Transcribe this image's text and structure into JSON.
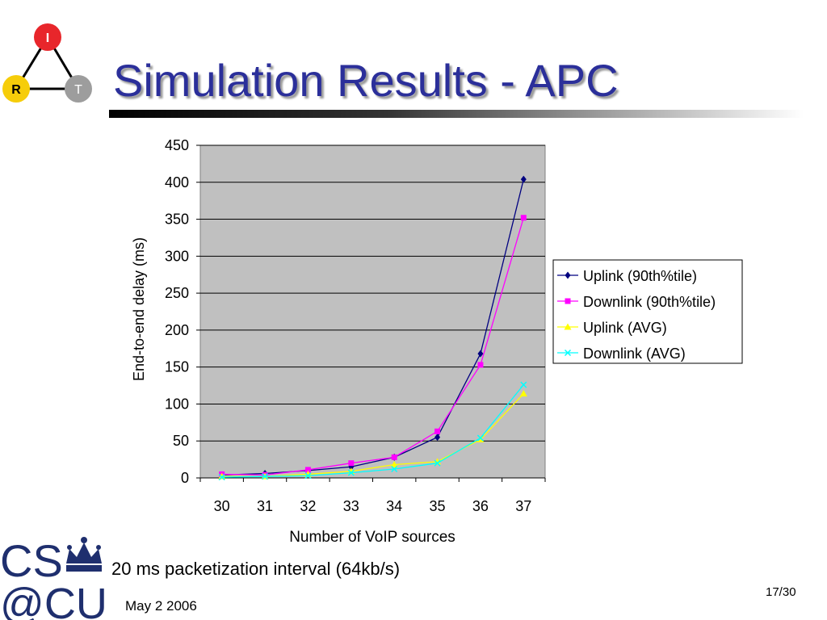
{
  "slide": {
    "title": "Simulation Results - APC",
    "caption": "20 ms packetization interval (64kb/s)",
    "date": "May 2 2006",
    "page": "17/30"
  },
  "logos": {
    "irt": {
      "letters": [
        "I",
        "R",
        "T"
      ],
      "colors": [
        "#e8262b",
        "#f6cd0a",
        "#9d9d9d"
      ]
    },
    "cu": {
      "line1": "CS",
      "line2": "@CU",
      "color": "#1f2f6e"
    }
  },
  "chart_data": {
    "type": "line",
    "title": "",
    "xlabel": "Number of VoIP sources",
    "ylabel": "End-to-end delay (ms)",
    "categories": [
      "30",
      "31",
      "32",
      "33",
      "34",
      "35",
      "36",
      "37"
    ],
    "ylim": [
      0,
      450
    ],
    "yticks": [
      "0",
      "50",
      "100",
      "150",
      "200",
      "250",
      "300",
      "350",
      "400",
      "450"
    ],
    "grid": true,
    "legend_position": "right",
    "plot_background": "#c0c0c0",
    "series": [
      {
        "name": "Uplink (90th%tile)",
        "color": "#000080",
        "marker": "diamond",
        "values": [
          4,
          6,
          10,
          15,
          28,
          55,
          168,
          404
        ]
      },
      {
        "name": "Downlink (90th%tile)",
        "color": "#ff00ff",
        "marker": "square",
        "values": [
          5,
          4,
          11,
          20,
          28,
          63,
          153,
          352
        ]
      },
      {
        "name": "Uplink (AVG)",
        "color": "#ffff00",
        "marker": "triangle",
        "values": [
          2,
          2,
          5,
          9,
          18,
          22,
          52,
          114
        ]
      },
      {
        "name": "Downlink (AVG)",
        "color": "#00ffff",
        "marker": "x",
        "values": [
          1,
          2,
          3,
          7,
          12,
          20,
          54,
          126
        ]
      }
    ]
  }
}
